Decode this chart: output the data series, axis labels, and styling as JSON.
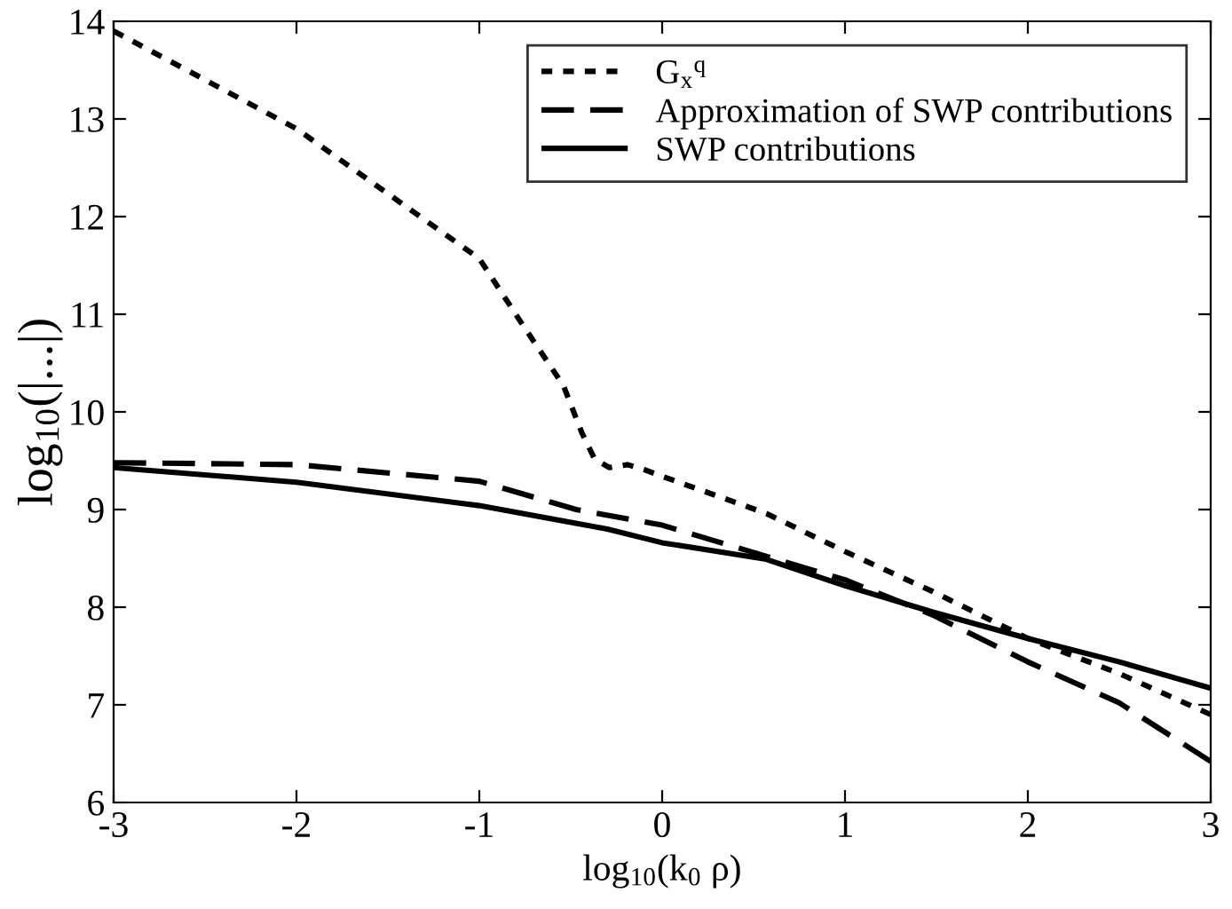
{
  "chart_data": {
    "type": "line",
    "xlabel": "log$_{10}$(k$_{0}$ ρ)",
    "ylabel": "log$_{10}$(|...|)",
    "xlim": [
      -3,
      3
    ],
    "ylim": [
      6,
      14
    ],
    "xticks": [
      -3,
      -2,
      -1,
      0,
      1,
      2,
      3
    ],
    "yticks": [
      6,
      7,
      8,
      9,
      10,
      11,
      12,
      13,
      14
    ],
    "grid": false,
    "legend": "top right",
    "series": [
      {
        "name": "G$_{x}$$^{q}$",
        "color": "#000000",
        "line_style": "dotted",
        "x": [
          -3,
          -2,
          -1,
          -0.78,
          -0.54,
          -0.44,
          -0.37,
          -0.29,
          -0.19,
          -0.1,
          0,
          0.57,
          1,
          1.48,
          2,
          2.5,
          3
        ],
        "values": [
          13.9,
          12.9,
          11.57,
          10.94,
          10.27,
          9.79,
          9.52,
          9.43,
          9.46,
          9.41,
          9.34,
          8.96,
          8.57,
          8.16,
          7.68,
          7.32,
          6.9
        ]
      },
      {
        "name": "Approximation of SWP contributions",
        "color": "#000000",
        "line_style": "dashed",
        "x": [
          -3,
          -2,
          -1,
          -0.47,
          0,
          1,
          1.48,
          2,
          2.5,
          3
        ],
        "values": [
          9.48,
          9.46,
          9.29,
          9.0,
          8.84,
          8.28,
          7.92,
          7.44,
          7.02,
          6.42
        ]
      },
      {
        "name": "SWP contributions",
        "color": "#000000",
        "line_style": "solid",
        "x": [
          -3,
          -2,
          -1,
          -0.3,
          0,
          0.57,
          1,
          1.48,
          2,
          2.5,
          3
        ],
        "values": [
          9.43,
          9.28,
          9.04,
          8.8,
          8.66,
          8.49,
          8.22,
          7.95,
          7.68,
          7.44,
          7.17
        ]
      }
    ]
  }
}
